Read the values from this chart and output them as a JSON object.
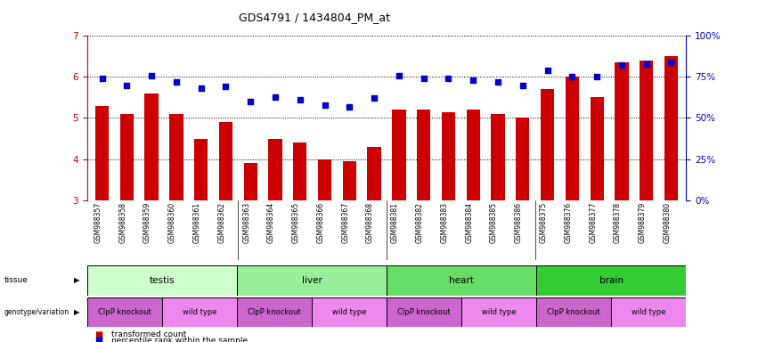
{
  "title": "GDS4791 / 1434804_PM_at",
  "samples": [
    "GSM988357",
    "GSM988358",
    "GSM988359",
    "GSM988360",
    "GSM988361",
    "GSM988362",
    "GSM988363",
    "GSM988364",
    "GSM988365",
    "GSM988366",
    "GSM988367",
    "GSM988368",
    "GSM988381",
    "GSM988382",
    "GSM988383",
    "GSM988384",
    "GSM988385",
    "GSM988386",
    "GSM988375",
    "GSM988376",
    "GSM988377",
    "GSM988378",
    "GSM988379",
    "GSM988380"
  ],
  "bar_values": [
    5.3,
    5.1,
    5.6,
    5.1,
    4.5,
    4.9,
    3.9,
    4.5,
    4.4,
    4.0,
    3.95,
    4.3,
    5.2,
    5.2,
    5.15,
    5.2,
    5.1,
    5.0,
    5.7,
    6.0,
    5.5,
    6.35,
    6.4,
    6.5
  ],
  "percentile_values": [
    74,
    70,
    76,
    72,
    68,
    69,
    60,
    63,
    61,
    58,
    57,
    62,
    76,
    74,
    74,
    73,
    72,
    70,
    79,
    75,
    75,
    82,
    83,
    84
  ],
  "ylim_left": [
    3,
    7
  ],
  "ylim_right": [
    0,
    100
  ],
  "yticks_left": [
    3,
    4,
    5,
    6,
    7
  ],
  "yticks_right": [
    0,
    25,
    50,
    75,
    100
  ],
  "bar_color": "#cc0000",
  "dot_color": "#0000cc",
  "tissue_groups": [
    {
      "label": "testis",
      "start": 0,
      "end": 6,
      "color": "#ccffcc"
    },
    {
      "label": "liver",
      "start": 6,
      "end": 12,
      "color": "#99ee99"
    },
    {
      "label": "heart",
      "start": 12,
      "end": 18,
      "color": "#66dd66"
    },
    {
      "label": "brain",
      "start": 18,
      "end": 24,
      "color": "#33cc33"
    }
  ],
  "genotype_groups": [
    {
      "label": "ClpP knockout",
      "start": 0,
      "end": 3,
      "color": "#cc66cc"
    },
    {
      "label": "wild type",
      "start": 3,
      "end": 6,
      "color": "#ee88ee"
    },
    {
      "label": "ClpP knockout",
      "start": 6,
      "end": 9,
      "color": "#cc66cc"
    },
    {
      "label": "wild type",
      "start": 9,
      "end": 12,
      "color": "#ee88ee"
    },
    {
      "label": "ClpP knockout",
      "start": 12,
      "end": 15,
      "color": "#cc66cc"
    },
    {
      "label": "wild type",
      "start": 15,
      "end": 18,
      "color": "#ee88ee"
    },
    {
      "label": "ClpP knockout",
      "start": 18,
      "end": 21,
      "color": "#cc66cc"
    },
    {
      "label": "wild type",
      "start": 21,
      "end": 24,
      "color": "#ee88ee"
    }
  ],
  "grid_color": "#000000",
  "bar_color_left_axis": "#cc0000",
  "bar_color_right_axis": "#0000cc",
  "xtick_bg_color": "#d8d8d8",
  "fig_width": 8.51,
  "fig_height": 3.84,
  "dpi": 100
}
